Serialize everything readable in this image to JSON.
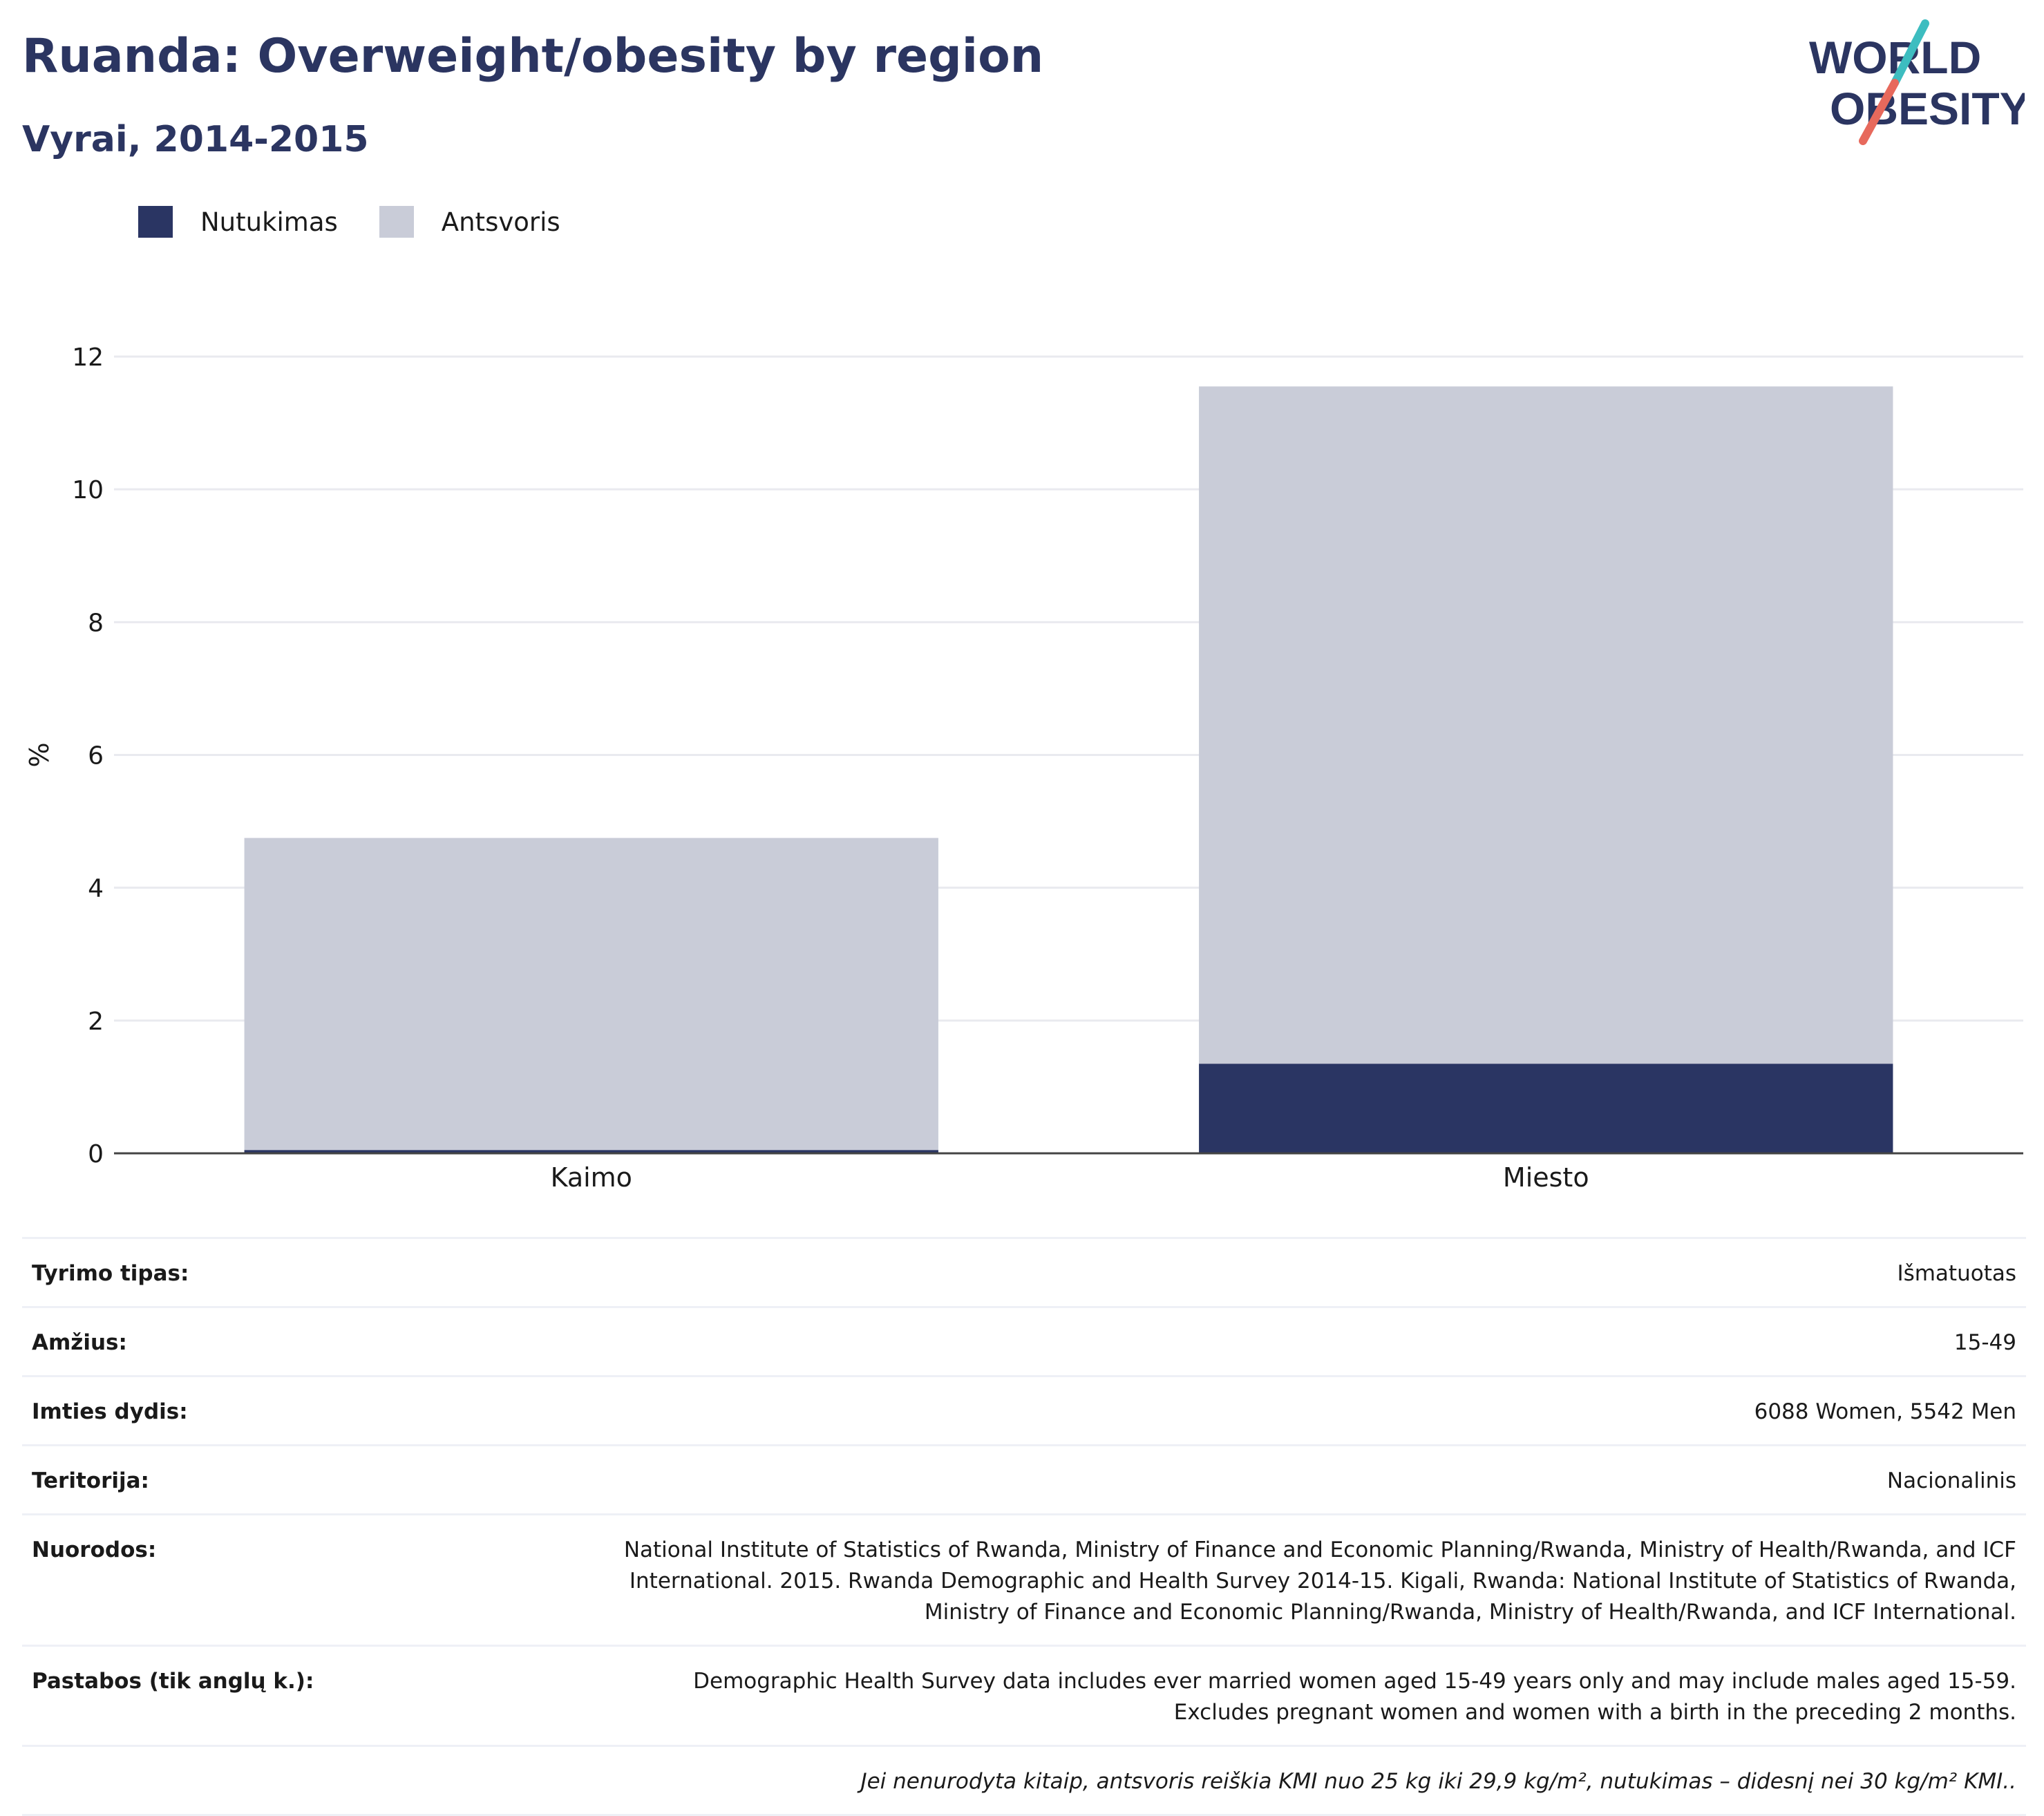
{
  "header": {
    "title": "Ruanda: Overweight/obesity by region",
    "subtitle": "Vyrai, 2014-2015"
  },
  "logo": {
    "line1": "WORLD",
    "line2": "OBESITY"
  },
  "colors": {
    "obesity": "#2a3563",
    "overweight": "#c9ccd8",
    "title": "#2b3561",
    "logo_teal": "#3dbdc0",
    "logo_red": "#e7695c"
  },
  "legend": [
    {
      "label": "Nutukimas",
      "color": "#2a3563"
    },
    {
      "label": "Antsvoris",
      "color": "#c9ccd8"
    }
  ],
  "chart_data": {
    "type": "bar",
    "stacked": true,
    "categories": [
      "Kaimo",
      "Miesto"
    ],
    "series": [
      {
        "name": "Nutukimas",
        "values": [
          0.05,
          1.35
        ]
      },
      {
        "name": "Antsvoris",
        "values": [
          4.7,
          10.2
        ]
      }
    ],
    "ylabel": "%",
    "ylim": [
      0,
      12
    ],
    "yticks": [
      0,
      2,
      4,
      6,
      8,
      10,
      12
    ],
    "grid": true,
    "legend_position": "top-left"
  },
  "info": [
    {
      "label": "Tyrimo tipas:",
      "value": "Išmatuotas"
    },
    {
      "label": "Amžius:",
      "value": "15-49"
    },
    {
      "label": "Imties dydis:",
      "value": "6088 Women, 5542 Men"
    },
    {
      "label": "Teritorija:",
      "value": "Nacionalinis"
    },
    {
      "label": "Nuorodos:",
      "value": "National Institute of Statistics of Rwanda, Ministry of Finance and Economic Planning/Rwanda, Ministry of Health/Rwanda, and ICF International. 2015. Rwanda Demographic and Health Survey 2014-15. Kigali, Rwanda: National Institute of Statistics of Rwanda, Ministry of Finance and Economic Planning/Rwanda, Ministry of Health/Rwanda, and ICF International."
    },
    {
      "label": "Pastabos (tik anglų k.):",
      "value": "Demographic Health Survey data includes ever married women aged 15-49 years only and may include males aged 15-59. Excludes pregnant women and women with a birth in the preceding 2 months."
    }
  ],
  "footnote": "Jei nenurodyta kitaip, antsvoris reiškia KMI nuo 25 kg iki 29,9 kg/m², nutukimas – didesnį nei 30 kg/m² KMI.."
}
